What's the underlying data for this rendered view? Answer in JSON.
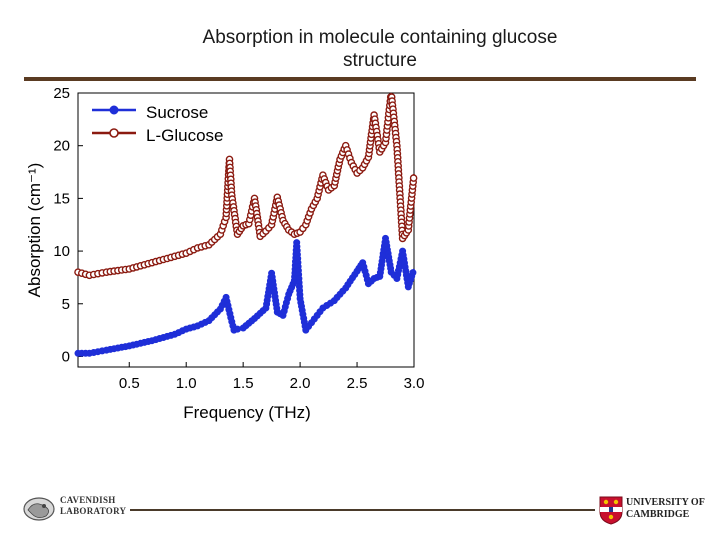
{
  "slide": {
    "title_line1": "Absorption in molecule containing glucose",
    "title_line2": "structure"
  },
  "logos": {
    "left_line1": "CAVENDISH",
    "left_line2": "LABORATORY",
    "right_line1": "UNIVERSITY OF",
    "right_line2": "CAMBRIDGE"
  },
  "colors": {
    "sucrose": "#1f2fd8",
    "glucose": "#8b1a10",
    "rule": "#5a3b22"
  },
  "chart_data": {
    "type": "line",
    "xlabel": "Frequency (THz)",
    "ylabel": "Absorption (cm⁻¹)",
    "xlim": [
      0.05,
      3.0
    ],
    "ylim": [
      -1,
      25
    ],
    "xticks": [
      "0.5",
      "1.0",
      "1.5",
      "2.0",
      "2.5",
      "3.0"
    ],
    "xtick_values": [
      0.5,
      1.0,
      1.5,
      2.0,
      2.5,
      3.0
    ],
    "yticks": [
      "0",
      "5",
      "10",
      "15",
      "20",
      "25"
    ],
    "ytick_values": [
      0,
      5,
      10,
      15,
      20,
      25
    ],
    "grid": false,
    "legend": "top-left",
    "series": [
      {
        "name": "Sucrose",
        "marker": "filled-circle",
        "x": [
          0.05,
          0.15,
          0.3,
          0.5,
          0.7,
          0.9,
          1.0,
          1.1,
          1.2,
          1.3,
          1.35,
          1.4,
          1.42,
          1.45,
          1.5,
          1.6,
          1.7,
          1.75,
          1.8,
          1.85,
          1.9,
          1.95,
          1.97,
          2.0,
          2.05,
          2.1,
          2.15,
          2.2,
          2.3,
          2.4,
          2.5,
          2.55,
          2.6,
          2.65,
          2.7,
          2.75,
          2.8,
          2.85,
          2.9,
          2.95,
          3.0
        ],
        "y": [
          0.3,
          0.3,
          0.6,
          1.0,
          1.5,
          2.1,
          2.6,
          2.9,
          3.4,
          4.5,
          5.6,
          3.3,
          2.5,
          2.6,
          2.7,
          3.6,
          4.6,
          7.9,
          4.2,
          3.9,
          5.9,
          7.2,
          10.8,
          5.5,
          2.5,
          3.2,
          3.9,
          4.6,
          5.3,
          6.5,
          8.1,
          8.9,
          6.9,
          7.4,
          7.6,
          11.2,
          8.0,
          7.4,
          10.0,
          6.6,
          8.3
        ]
      },
      {
        "name": "L-Glucose",
        "marker": "open-circle",
        "x": [
          0.05,
          0.15,
          0.3,
          0.5,
          0.7,
          0.9,
          1.0,
          1.1,
          1.2,
          1.3,
          1.35,
          1.38,
          1.4,
          1.45,
          1.5,
          1.55,
          1.6,
          1.65,
          1.7,
          1.75,
          1.8,
          1.85,
          1.9,
          1.95,
          2.0,
          2.05,
          2.1,
          2.15,
          2.2,
          2.25,
          2.3,
          2.35,
          2.4,
          2.45,
          2.5,
          2.55,
          2.6,
          2.65,
          2.7,
          2.75,
          2.8,
          2.85,
          2.9,
          2.95,
          3.0
        ],
        "y": [
          8.0,
          7.7,
          8.0,
          8.3,
          8.9,
          9.5,
          9.8,
          10.3,
          10.6,
          11.6,
          13.2,
          18.7,
          15.3,
          11.6,
          12.4,
          12.6,
          15.0,
          11.4,
          11.9,
          12.5,
          15.1,
          12.9,
          12.0,
          11.6,
          11.8,
          12.5,
          14.0,
          15.0,
          17.2,
          15.8,
          16.2,
          18.7,
          20.0,
          18.4,
          17.4,
          17.9,
          18.9,
          22.9,
          19.4,
          20.3,
          25.0,
          20.0,
          11.2,
          12.0,
          17.3
        ]
      }
    ]
  }
}
